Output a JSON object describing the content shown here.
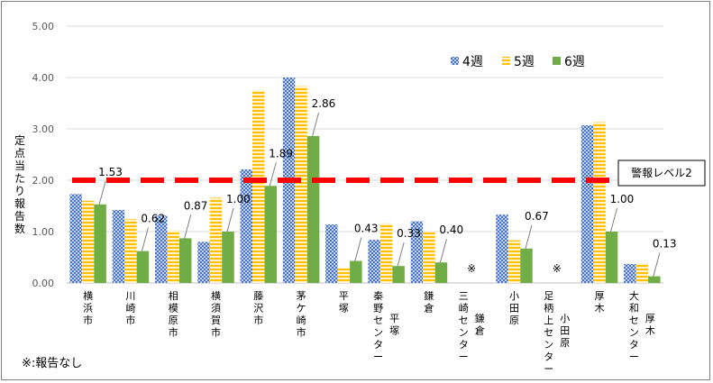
{
  "chart_data": {
    "type": "bar",
    "ylabel": "定点当たり報告数",
    "ylim": [
      0,
      5
    ],
    "yticks": [
      "0.00",
      "1.00",
      "2.00",
      "3.00",
      "4.00",
      "5.00"
    ],
    "legend_position": "top-right",
    "categories": [
      {
        "lines": [
          "横",
          "浜",
          "市"
        ]
      },
      {
        "lines": [
          "川",
          "崎",
          "市"
        ]
      },
      {
        "lines": [
          "相",
          "模",
          "原",
          "市"
        ]
      },
      {
        "lines": [
          "横",
          "須",
          "賀",
          "市"
        ]
      },
      {
        "lines": [
          "藤",
          "沢",
          "市"
        ]
      },
      {
        "lines": [
          "茅",
          "ケ",
          "崎",
          "市"
        ]
      },
      {
        "lines": [
          "平",
          "塚"
        ]
      },
      {
        "lines": [
          "秦",
          "野",
          "セ",
          "ン",
          "タ",
          "ー"
        ],
        "sub": [
          "平",
          "塚"
        ]
      },
      {
        "lines": [
          "鎌",
          "倉"
        ]
      },
      {
        "lines": [
          "三",
          "崎",
          "セ",
          "ン",
          "タ",
          "ー"
        ],
        "sub": [
          "鎌",
          "倉"
        ]
      },
      {
        "lines": [
          "小",
          "田",
          "原"
        ]
      },
      {
        "lines": [
          "足",
          "柄",
          "上",
          "セ",
          "ン",
          "タ",
          "ー"
        ],
        "sub": [
          "小",
          "田",
          "原"
        ]
      },
      {
        "lines": [
          "厚",
          "木"
        ]
      },
      {
        "lines": [
          "大",
          "和",
          "セ",
          "ン",
          "タ",
          "ー"
        ],
        "sub": [
          "厚",
          "木"
        ]
      }
    ],
    "series": [
      {
        "name": "4週",
        "color": "#4472c4",
        "values": [
          1.73,
          1.42,
          1.31,
          0.8,
          2.21,
          4.0,
          1.14,
          0.84,
          1.2,
          null,
          1.33,
          null,
          3.07,
          0.37
        ]
      },
      {
        "name": "5週",
        "color": "#ffc000",
        "values": [
          1.6,
          1.24,
          1.02,
          1.66,
          3.75,
          3.83,
          0.29,
          1.16,
          1.0,
          null,
          0.83,
          null,
          3.13,
          0.38
        ]
      },
      {
        "name": "6週",
        "color": "#70ad47",
        "values": [
          1.53,
          0.62,
          0.87,
          1.0,
          1.89,
          2.86,
          0.43,
          0.33,
          0.4,
          null,
          0.67,
          null,
          1.0,
          0.13
        ]
      }
    ],
    "data_labels": [
      "1.53",
      "0.62",
      "0.87",
      "1.00",
      "1.89",
      "2.86",
      "0.43",
      "0.33",
      "0.40",
      "",
      "0.67",
      "",
      "1.00",
      "0.13"
    ],
    "no_report_mark": "※",
    "no_report_categories": [
      9,
      11
    ],
    "reference_line": {
      "value": 2.0,
      "label": "警報レベル2",
      "color": "#ff0000"
    },
    "footnote": "※:報告なし"
  }
}
